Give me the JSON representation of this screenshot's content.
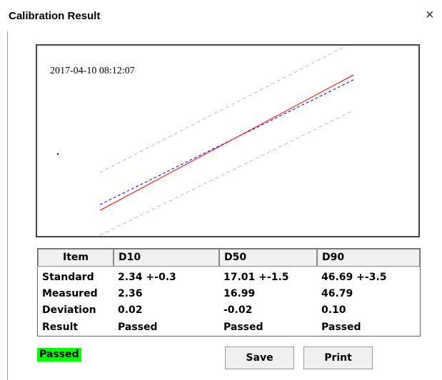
{
  "header": {
    "title": "Calibration Result",
    "close": "×"
  },
  "plot": {
    "timestamp": "2017-04-10 08:12:07"
  },
  "table": {
    "header": [
      "Item",
      "D10",
      "D50",
      "D90"
    ],
    "rows": [
      [
        "Standard",
        "2.34 +-0.3",
        "17.01 +-1.5",
        "46.69 +-3.5"
      ],
      [
        "Measured",
        "2.36",
        "16.99",
        "46.79"
      ],
      [
        "Deviation",
        "0.02",
        "-0.02",
        "0.10"
      ],
      [
        "Result",
        "Passed",
        "Passed",
        "Passed"
      ]
    ]
  },
  "status": "Passed",
  "buttons": [
    "Save",
    "Print"
  ]
}
